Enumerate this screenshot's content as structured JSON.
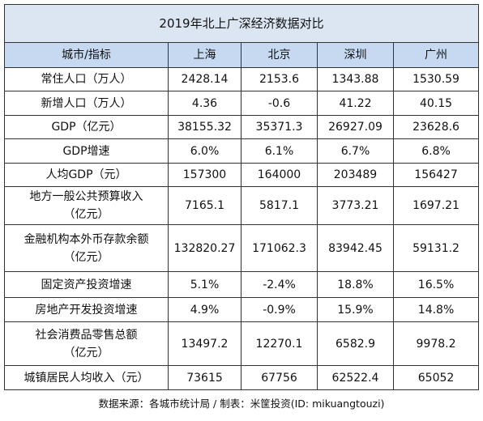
{
  "table": {
    "title": "2019年北上广深经济数据对比",
    "header": [
      "城市/指标",
      "上海",
      "北京",
      "深圳",
      "广州"
    ],
    "rows": [
      [
        "常住人口（万人）",
        "2428.14",
        "2153.6",
        "1343.88",
        "1530.59"
      ],
      [
        "新增人口（万人）",
        "4.36",
        "-0.6",
        "41.22",
        "40.15"
      ],
      [
        "GDP（亿元）",
        "38155.32",
        "35371.3",
        "26927.09",
        "23628.6"
      ],
      [
        "GDP增速",
        "6.0%",
        "6.1%",
        "6.7%",
        "6.8%"
      ],
      [
        "人均GDP（元）",
        "157300",
        "164000",
        "203489",
        "156427"
      ],
      [
        "地方一般公共预算收入\n（亿元）",
        "7165.1",
        "5817.1",
        "3773.21",
        "1697.21"
      ],
      [
        "金融机构本外币存款余额\n（亿元）",
        "132820.27",
        "171062.3",
        "83942.45",
        "59131.2"
      ],
      [
        "固定资产投资增速",
        "5.1%",
        "-2.4%",
        "18.8%",
        "16.5%"
      ],
      [
        "房地产开发投资增速",
        "4.9%",
        "-0.9%",
        "15.9%",
        "14.8%"
      ],
      [
        "社会消费品零售总额\n（亿元）",
        "13497.2",
        "12270.1",
        "6582.9",
        "9978.2"
      ],
      [
        "城镇居民人均收入（元）",
        "73615",
        "67756",
        "62522.4",
        "65052"
      ]
    ],
    "footer": "数据来源：各城市统计局 / 制表：米筐投资(ID: mikuangtouzi)"
  }
}
